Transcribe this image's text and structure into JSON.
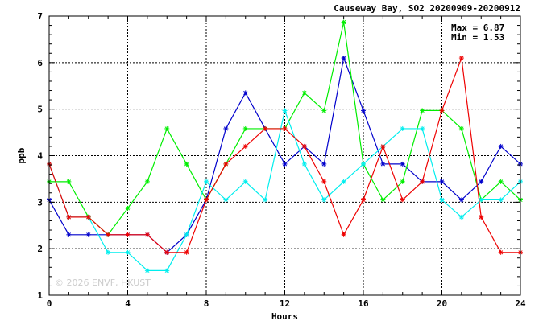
{
  "chart_data": {
    "type": "line",
    "title": "Causeway Bay, SO2 20200909-20200912",
    "xlabel": "Hours",
    "ylabel": "ppb",
    "xlim": [
      0,
      24
    ],
    "ylim": [
      1,
      7
    ],
    "xticks": [
      0,
      4,
      8,
      12,
      16,
      20,
      24
    ],
    "yticks": [
      1,
      2,
      3,
      4,
      5,
      6,
      7
    ],
    "grid": true,
    "annotations": {
      "max": "Max = 6.87",
      "min": "Min = 1.53"
    },
    "watermark": "© 2026 ENVF, HKUST",
    "x": [
      0,
      1,
      2,
      3,
      4,
      5,
      6,
      7,
      8,
      9,
      10,
      11,
      12,
      13,
      14,
      15,
      16,
      17,
      18,
      19,
      20,
      21,
      22,
      23,
      24
    ],
    "series": [
      {
        "color": "#0000cc",
        "values": [
          3.05,
          2.3,
          2.3,
          2.3,
          2.3,
          2.3,
          1.92,
          2.3,
          3.05,
          4.58,
          5.35,
          4.58,
          3.82,
          4.2,
          3.82,
          6.1,
          4.97,
          3.82,
          3.82,
          3.44,
          3.44,
          3.05,
          3.44,
          4.2,
          3.82
        ]
      },
      {
        "color": "#00ee00",
        "values": [
          3.44,
          3.44,
          2.68,
          2.3,
          2.87,
          3.44,
          4.58,
          3.82,
          3.05,
          3.82,
          4.58,
          4.58,
          4.58,
          5.35,
          4.97,
          6.87,
          3.82,
          3.05,
          3.44,
          4.97,
          4.97,
          4.58,
          3.05,
          3.44,
          3.05
        ]
      },
      {
        "color": "#00eeee",
        "values": [
          3.82,
          2.68,
          2.68,
          1.92,
          1.92,
          1.53,
          1.53,
          2.3,
          3.44,
          3.05,
          3.44,
          3.05,
          4.97,
          3.82,
          3.05,
          3.44,
          3.82,
          4.2,
          4.58,
          4.58,
          3.05,
          2.68,
          3.05,
          3.05,
          3.44
        ]
      },
      {
        "color": "#ee0000",
        "values": [
          3.82,
          2.68,
          2.68,
          2.3,
          2.3,
          2.3,
          1.92,
          1.92,
          3.05,
          3.82,
          4.2,
          4.58,
          4.58,
          4.2,
          3.44,
          2.3,
          3.05,
          4.2,
          3.05,
          3.44,
          4.97,
          6.1,
          2.68,
          1.92,
          1.92
        ]
      }
    ]
  }
}
